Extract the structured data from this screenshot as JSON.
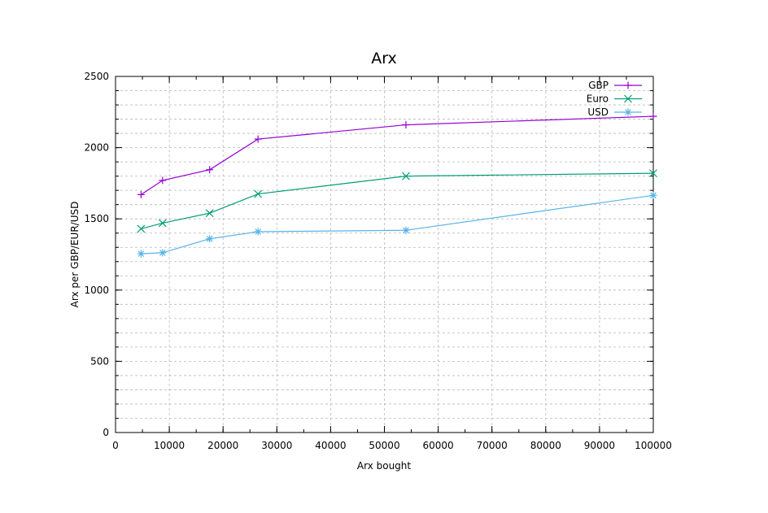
{
  "chart_data": {
    "type": "line",
    "title": "Arx",
    "xlabel": "Arx bought",
    "ylabel": "Arx per GBP/EUR/USD",
    "xlim": [
      0,
      100000
    ],
    "ylim": [
      0,
      2500
    ],
    "x_ticks": [
      0,
      10000,
      20000,
      30000,
      40000,
      50000,
      60000,
      70000,
      80000,
      90000,
      100000
    ],
    "y_ticks": [
      0,
      500,
      1000,
      1500,
      2000,
      2500
    ],
    "x_minor_step": 5000,
    "y_minor_step": 100,
    "grid": true,
    "legend_position": "top-right",
    "series": [
      {
        "name": "GBP",
        "color": "#9400d3",
        "marker": "plus",
        "points": [
          [
            4750,
            1670
          ],
          [
            8750,
            1770
          ],
          [
            17500,
            1845
          ],
          [
            26500,
            2060
          ],
          [
            54000,
            2160
          ],
          [
            100000,
            2220
          ]
        ]
      },
      {
        "name": "Euro",
        "color": "#009e73",
        "marker": "cross",
        "points": [
          [
            4750,
            1430
          ],
          [
            8750,
            1470
          ],
          [
            17500,
            1540
          ],
          [
            26500,
            1675
          ],
          [
            54000,
            1800
          ],
          [
            100000,
            1820
          ]
        ]
      },
      {
        "name": "USD",
        "color": "#56b4e9",
        "marker": "star",
        "points": [
          [
            4750,
            1255
          ],
          [
            8750,
            1262
          ],
          [
            17500,
            1360
          ],
          [
            26500,
            1410
          ],
          [
            54000,
            1420
          ],
          [
            100000,
            1665
          ]
        ]
      }
    ]
  }
}
